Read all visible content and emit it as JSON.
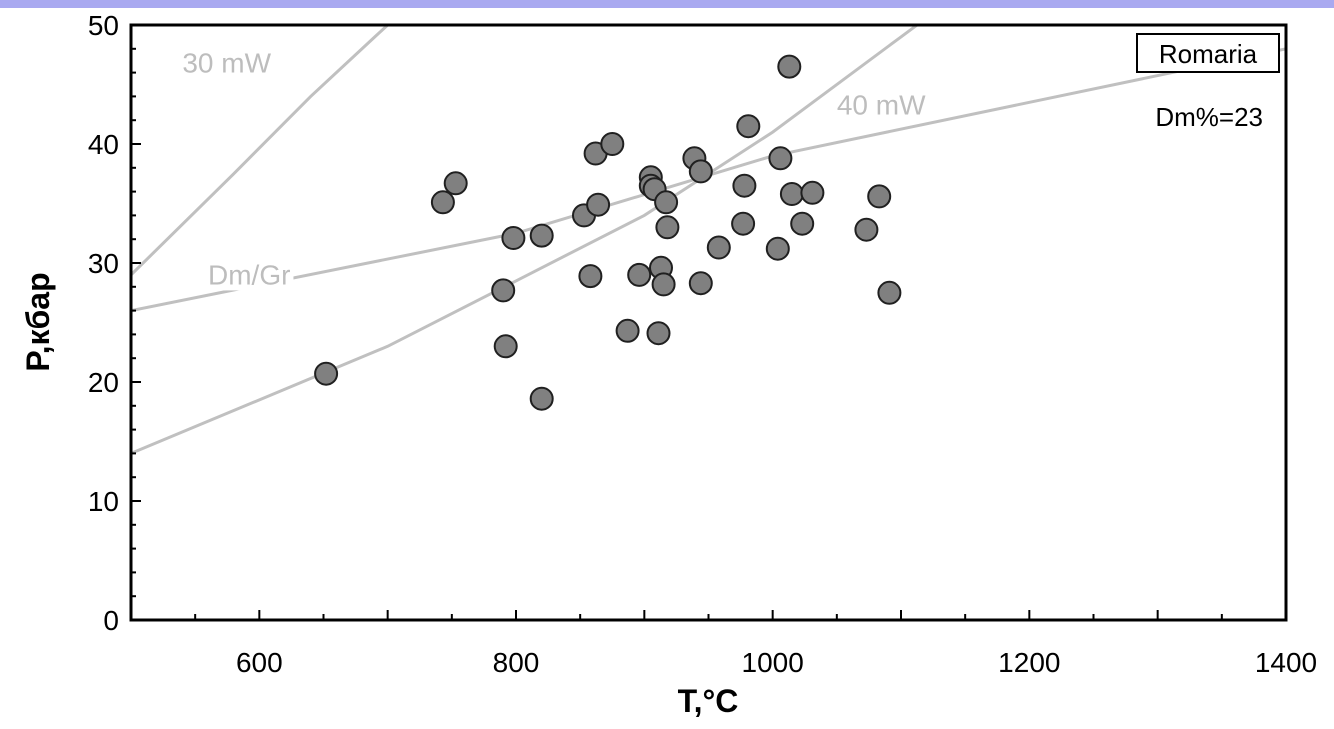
{
  "colors": {
    "top_bar": "#a9a9f0",
    "reference_line": "#c0c0c0",
    "marker_fill": "#808080",
    "marker_stroke": "#202020"
  },
  "chart_data": {
    "type": "scatter",
    "xlabel": "T,°C",
    "ylabel": "P,кбар",
    "xlim": [
      500,
      1400
    ],
    "ylim": [
      0,
      50
    ],
    "x_ticks": [
      600,
      800,
      1000,
      1200,
      1400
    ],
    "y_ticks": [
      0,
      10,
      20,
      30,
      40,
      50
    ],
    "grid": false,
    "legend_box": "Romaria",
    "annotation": "Dm%=23",
    "reference_lines": [
      {
        "name": "30 mW",
        "points": [
          [
            500,
            29
          ],
          [
            580,
            37.5
          ],
          [
            640,
            44
          ],
          [
            690,
            49
          ],
          [
            700,
            50
          ]
        ],
        "label_at": [
          540,
          46
        ]
      },
      {
        "name": "40 mW",
        "points": [
          [
            500,
            14
          ],
          [
            700,
            23
          ],
          [
            800,
            28.5
          ],
          [
            900,
            34
          ],
          [
            1000,
            41
          ],
          [
            1100,
            49
          ],
          [
            1150,
            53
          ]
        ],
        "label_at": [
          1050,
          42.5
        ]
      },
      {
        "name": "Dm/Gr",
        "points": [
          [
            500,
            26
          ],
          [
            800,
            32.5
          ],
          [
            1000,
            39
          ],
          [
            1400,
            48
          ]
        ],
        "label_at": [
          560,
          28.2
        ]
      }
    ],
    "points": [
      {
        "x": 652,
        "y": 20.7
      },
      {
        "x": 743,
        "y": 35.1
      },
      {
        "x": 753,
        "y": 36.7
      },
      {
        "x": 790,
        "y": 27.7
      },
      {
        "x": 792,
        "y": 23.0
      },
      {
        "x": 798,
        "y": 32.1
      },
      {
        "x": 820,
        "y": 32.3
      },
      {
        "x": 820,
        "y": 18.6
      },
      {
        "x": 853,
        "y": 34.0
      },
      {
        "x": 858,
        "y": 28.9
      },
      {
        "x": 862,
        "y": 39.2
      },
      {
        "x": 864,
        "y": 34.9
      },
      {
        "x": 875,
        "y": 40.0
      },
      {
        "x": 887,
        "y": 24.3
      },
      {
        "x": 896,
        "y": 29.0
      },
      {
        "x": 905,
        "y": 37.2
      },
      {
        "x": 905,
        "y": 36.5
      },
      {
        "x": 908,
        "y": 36.2
      },
      {
        "x": 911,
        "y": 24.1
      },
      {
        "x": 913,
        "y": 29.6
      },
      {
        "x": 915,
        "y": 28.2
      },
      {
        "x": 917,
        "y": 35.1
      },
      {
        "x": 918,
        "y": 33.0
      },
      {
        "x": 939,
        "y": 38.8
      },
      {
        "x": 944,
        "y": 37.7
      },
      {
        "x": 944,
        "y": 28.3
      },
      {
        "x": 958,
        "y": 31.3
      },
      {
        "x": 977,
        "y": 33.3
      },
      {
        "x": 978,
        "y": 36.5
      },
      {
        "x": 981,
        "y": 41.5
      },
      {
        "x": 1004,
        "y": 31.2
      },
      {
        "x": 1006,
        "y": 38.8
      },
      {
        "x": 1013,
        "y": 46.5
      },
      {
        "x": 1015,
        "y": 35.8
      },
      {
        "x": 1023,
        "y": 33.3
      },
      {
        "x": 1031,
        "y": 35.9
      },
      {
        "x": 1073,
        "y": 32.8
      },
      {
        "x": 1083,
        "y": 35.6
      },
      {
        "x": 1091,
        "y": 27.5
      }
    ]
  }
}
